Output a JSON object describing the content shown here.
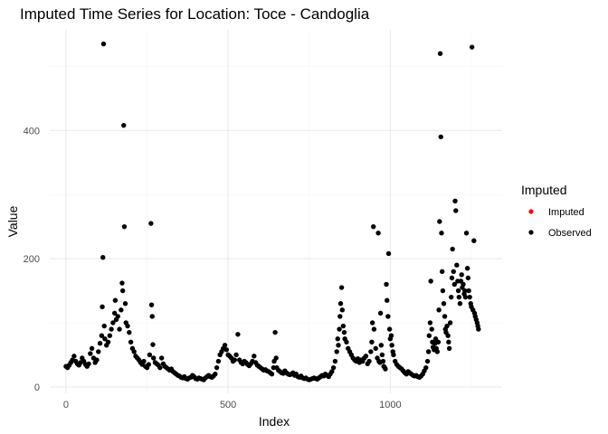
{
  "chart_data": {
    "type": "scatter",
    "title": "Imputed Time Series for Location: Toce - Candoglia",
    "xlabel": "Index",
    "ylabel": "Value",
    "xlim": [
      -50,
      1345
    ],
    "ylim": [
      -10,
      557
    ],
    "x_ticks": [
      0,
      500,
      1000
    ],
    "x_tick_labels": [
      "0",
      "500",
      "1000"
    ],
    "y_ticks": [
      0,
      200,
      400
    ],
    "y_tick_labels": [
      "0",
      "200",
      "400"
    ],
    "x_minor_ticks": [
      250,
      750,
      1250
    ],
    "y_minor_ticks": [
      100,
      300,
      500
    ],
    "grid": true,
    "legend": {
      "title": "Imputed",
      "position": "right",
      "entries": [
        {
          "label": "Imputed",
          "color": "#ff0000"
        },
        {
          "label": "Observed",
          "color": "#000000"
        }
      ]
    },
    "series": [
      {
        "name": "Imputed",
        "color": "#ff0000",
        "points": []
      },
      {
        "name": "Observed",
        "color": "#000000",
        "points": [
          [
            0,
            32
          ],
          [
            5,
            30
          ],
          [
            10,
            34
          ],
          [
            15,
            38
          ],
          [
            20,
            42
          ],
          [
            25,
            48
          ],
          [
            30,
            40
          ],
          [
            35,
            36
          ],
          [
            40,
            34
          ],
          [
            45,
            38
          ],
          [
            50,
            45
          ],
          [
            55,
            40
          ],
          [
            60,
            35
          ],
          [
            65,
            32
          ],
          [
            70,
            36
          ],
          [
            75,
            52
          ],
          [
            80,
            60
          ],
          [
            85,
            45
          ],
          [
            90,
            38
          ],
          [
            95,
            42
          ],
          [
            100,
            55
          ],
          [
            105,
            68
          ],
          [
            110,
            80
          ],
          [
            112,
            125
          ],
          [
            114,
            202
          ],
          [
            116,
            535
          ],
          [
            118,
            95
          ],
          [
            120,
            75
          ],
          [
            125,
            65
          ],
          [
            130,
            70
          ],
          [
            135,
            80
          ],
          [
            140,
            90
          ],
          [
            145,
            100
          ],
          [
            150,
            115
          ],
          [
            152,
            135
          ],
          [
            155,
            105
          ],
          [
            160,
            110
          ],
          [
            165,
            90
          ],
          [
            170,
            120
          ],
          [
            173,
            162
          ],
          [
            175,
            150
          ],
          [
            178,
            408
          ],
          [
            180,
            250
          ],
          [
            183,
            130
          ],
          [
            185,
            100
          ],
          [
            190,
            95
          ],
          [
            195,
            85
          ],
          [
            200,
            70
          ],
          [
            205,
            60
          ],
          [
            210,
            55
          ],
          [
            215,
            48
          ],
          [
            220,
            45
          ],
          [
            225,
            42
          ],
          [
            230,
            38
          ],
          [
            235,
            35
          ],
          [
            240,
            40
          ],
          [
            245,
            32
          ],
          [
            250,
            30
          ],
          [
            255,
            35
          ],
          [
            258,
            50
          ],
          [
            262,
            255
          ],
          [
            264,
            128
          ],
          [
            266,
            110
          ],
          [
            268,
            66
          ],
          [
            270,
            45
          ],
          [
            275,
            38
          ],
          [
            280,
            36
          ],
          [
            285,
            34
          ],
          [
            290,
            30
          ],
          [
            295,
            45
          ],
          [
            300,
            36
          ],
          [
            305,
            32
          ],
          [
            310,
            30
          ],
          [
            315,
            28
          ],
          [
            320,
            26
          ],
          [
            325,
            28
          ],
          [
            330,
            24
          ],
          [
            335,
            22
          ],
          [
            340,
            20
          ],
          [
            345,
            18
          ],
          [
            350,
            17
          ],
          [
            355,
            15
          ],
          [
            360,
            14
          ],
          [
            365,
            16
          ],
          [
            370,
            13
          ],
          [
            375,
            12
          ],
          [
            380,
            14
          ],
          [
            385,
            15
          ],
          [
            390,
            18
          ],
          [
            395,
            16
          ],
          [
            400,
            13
          ],
          [
            405,
            12
          ],
          [
            410,
            14
          ],
          [
            415,
            13
          ],
          [
            420,
            12
          ],
          [
            425,
            11
          ],
          [
            430,
            14
          ],
          [
            435,
            16
          ],
          [
            440,
            18
          ],
          [
            445,
            16
          ],
          [
            450,
            15
          ],
          [
            455,
            17
          ],
          [
            460,
            20
          ],
          [
            465,
            30
          ],
          [
            470,
            40
          ],
          [
            475,
            50
          ],
          [
            480,
            55
          ],
          [
            485,
            60
          ],
          [
            490,
            65
          ],
          [
            495,
            58
          ],
          [
            500,
            50
          ],
          [
            505,
            48
          ],
          [
            510,
            45
          ],
          [
            515,
            40
          ],
          [
            520,
            42
          ],
          [
            525,
            50
          ],
          [
            530,
            82
          ],
          [
            535,
            42
          ],
          [
            540,
            38
          ],
          [
            545,
            36
          ],
          [
            550,
            40
          ],
          [
            555,
            38
          ],
          [
            560,
            35
          ],
          [
            565,
            33
          ],
          [
            570,
            36
          ],
          [
            575,
            40
          ],
          [
            580,
            48
          ],
          [
            585,
            38
          ],
          [
            590,
            34
          ],
          [
            595,
            32
          ],
          [
            600,
            30
          ],
          [
            605,
            28
          ],
          [
            610,
            26
          ],
          [
            615,
            27
          ],
          [
            620,
            25
          ],
          [
            625,
            24
          ],
          [
            630,
            22
          ],
          [
            635,
            20
          ],
          [
            640,
            30
          ],
          [
            642,
            40
          ],
          [
            645,
            85
          ],
          [
            648,
            45
          ],
          [
            650,
            30
          ],
          [
            655,
            26
          ],
          [
            660,
            24
          ],
          [
            665,
            22
          ],
          [
            670,
            21
          ],
          [
            675,
            25
          ],
          [
            680,
            22
          ],
          [
            685,
            20
          ],
          [
            690,
            19
          ],
          [
            695,
            20
          ],
          [
            700,
            22
          ],
          [
            705,
            18
          ],
          [
            710,
            20
          ],
          [
            715,
            16
          ],
          [
            720,
            15
          ],
          [
            725,
            17
          ],
          [
            730,
            14
          ],
          [
            735,
            13
          ],
          [
            740,
            14
          ],
          [
            745,
            12
          ],
          [
            750,
            11
          ],
          [
            755,
            12
          ],
          [
            760,
            13
          ],
          [
            765,
            14
          ],
          [
            770,
            13
          ],
          [
            775,
            12
          ],
          [
            780,
            14
          ],
          [
            785,
            16
          ],
          [
            790,
            18
          ],
          [
            795,
            17
          ],
          [
            800,
            20
          ],
          [
            805,
            18
          ],
          [
            810,
            16
          ],
          [
            815,
            20
          ],
          [
            820,
            24
          ],
          [
            825,
            30
          ],
          [
            830,
            40
          ],
          [
            835,
            55
          ],
          [
            838,
            75
          ],
          [
            840,
            65
          ],
          [
            843,
            90
          ],
          [
            845,
            110
          ],
          [
            847,
            130
          ],
          [
            850,
            155
          ],
          [
            852,
            120
          ],
          [
            855,
            95
          ],
          [
            858,
            85
          ],
          [
            860,
            75
          ],
          [
            865,
            70
          ],
          [
            870,
            60
          ],
          [
            875,
            55
          ],
          [
            880,
            50
          ],
          [
            885,
            45
          ],
          [
            890,
            42
          ],
          [
            895,
            40
          ],
          [
            900,
            44
          ],
          [
            905,
            38
          ],
          [
            910,
            42
          ],
          [
            915,
            40
          ],
          [
            920,
            45
          ],
          [
            925,
            48
          ],
          [
            930,
            36
          ],
          [
            935,
            40
          ],
          [
            940,
            55
          ],
          [
            943,
            70
          ],
          [
            945,
            100
          ],
          [
            948,
            250
          ],
          [
            950,
            90
          ],
          [
            955,
            60
          ],
          [
            960,
            45
          ],
          [
            963,
            240
          ],
          [
            965,
            40
          ],
          [
            968,
            38
          ],
          [
            970,
            115
          ],
          [
            972,
            65
          ],
          [
            975,
            50
          ],
          [
            978,
            40
          ],
          [
            980,
            32
          ],
          [
            983,
            30
          ],
          [
            985,
            28
          ],
          [
            988,
            160
          ],
          [
            990,
            135
          ],
          [
            993,
            110
          ],
          [
            995,
            208
          ],
          [
            998,
            90
          ],
          [
            1000,
            75
          ],
          [
            1003,
            80
          ],
          [
            1005,
            65
          ],
          [
            1008,
            55
          ],
          [
            1010,
            50
          ],
          [
            1015,
            40
          ],
          [
            1020,
            35
          ],
          [
            1025,
            32
          ],
          [
            1030,
            30
          ],
          [
            1035,
            28
          ],
          [
            1040,
            25
          ],
          [
            1045,
            22
          ],
          [
            1050,
            20
          ],
          [
            1055,
            24
          ],
          [
            1060,
            22
          ],
          [
            1065,
            20
          ],
          [
            1070,
            18
          ],
          [
            1075,
            17
          ],
          [
            1080,
            18
          ],
          [
            1085,
            16
          ],
          [
            1090,
            15
          ],
          [
            1095,
            17
          ],
          [
            1100,
            20
          ],
          [
            1105,
            25
          ],
          [
            1110,
            30
          ],
          [
            1115,
            40
          ],
          [
            1118,
            55
          ],
          [
            1120,
            80
          ],
          [
            1123,
            100
          ],
          [
            1125,
            165
          ],
          [
            1128,
            90
          ],
          [
            1130,
            70
          ],
          [
            1132,
            62
          ],
          [
            1135,
            58
          ],
          [
            1138,
            68
          ],
          [
            1140,
            75
          ],
          [
            1142,
            60
          ],
          [
            1145,
            55
          ],
          [
            1148,
            70
          ],
          [
            1150,
            120
          ],
          [
            1152,
            258
          ],
          [
            1154,
            520
          ],
          [
            1156,
            390
          ],
          [
            1158,
            240
          ],
          [
            1160,
            180
          ],
          [
            1162,
            150
          ],
          [
            1165,
            130
          ],
          [
            1168,
            110
          ],
          [
            1170,
            90
          ],
          [
            1172,
            85
          ],
          [
            1175,
            95
          ],
          [
            1178,
            80
          ],
          [
            1180,
            70
          ],
          [
            1182,
            60
          ],
          [
            1185,
            100
          ],
          [
            1188,
            140
          ],
          [
            1190,
            170
          ],
          [
            1192,
            215
          ],
          [
            1195,
            180
          ],
          [
            1198,
            160
          ],
          [
            1200,
            290
          ],
          [
            1202,
            275
          ],
          [
            1205,
            190
          ],
          [
            1208,
            165
          ],
          [
            1210,
            150
          ],
          [
            1212,
            140
          ],
          [
            1215,
            130
          ],
          [
            1218,
            165
          ],
          [
            1220,
            175
          ],
          [
            1222,
            155
          ],
          [
            1225,
            160
          ],
          [
            1228,
            145
          ],
          [
            1230,
            150
          ],
          [
            1232,
            140
          ],
          [
            1235,
            240
          ],
          [
            1238,
            185
          ],
          [
            1240,
            170
          ],
          [
            1242,
            150
          ],
          [
            1245,
            140
          ],
          [
            1248,
            130
          ],
          [
            1250,
            125
          ],
          [
            1252,
            530
          ],
          [
            1255,
            120
          ],
          [
            1258,
            228
          ],
          [
            1260,
            115
          ],
          [
            1262,
            110
          ],
          [
            1265,
            105
          ],
          [
            1268,
            100
          ],
          [
            1270,
            95
          ],
          [
            1272,
            90
          ]
        ]
      }
    ]
  }
}
